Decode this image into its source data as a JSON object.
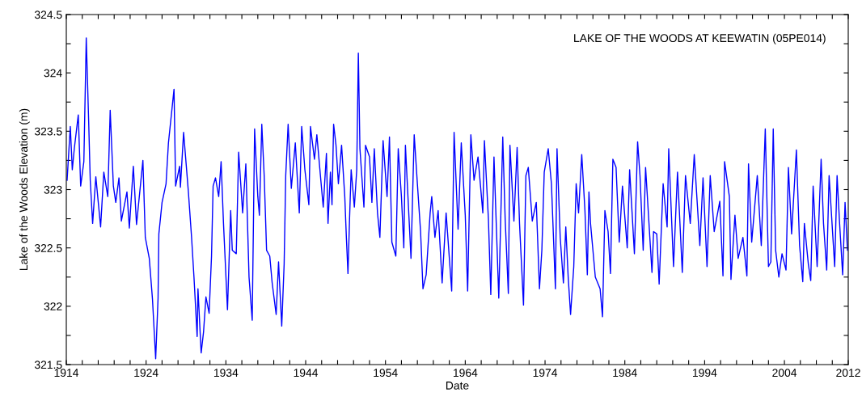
{
  "chart_data": {
    "type": "line",
    "title": "LAKE OF THE WOODS AT KEEWATIN (05PE014)",
    "xlabel": "Date",
    "ylabel": "Lake of the Woods Elevation (m)",
    "xlim": [
      1914,
      2012
    ],
    "xticks": [
      1914,
      {
        "value": 1916,
        "label": null
      },
      {
        "value": 1918,
        "label": null
      },
      {
        "value": 1920,
        "label": null
      },
      {
        "value": 1922,
        "label": null
      },
      1924,
      {
        "value": 1926,
        "label": null
      },
      {
        "value": 1928,
        "label": null
      },
      {
        "value": 1930,
        "label": null
      },
      {
        "value": 1932,
        "label": null
      },
      1934,
      {
        "value": 1936,
        "label": null
      },
      {
        "value": 1938,
        "label": null
      },
      {
        "value": 1940,
        "label": null
      },
      {
        "value": 1942,
        "label": null
      },
      1944,
      {
        "value": 1946,
        "label": null
      },
      {
        "value": 1948,
        "label": null
      },
      {
        "value": 1950,
        "label": null
      },
      {
        "value": 1952,
        "label": null
      },
      1954,
      {
        "value": 1956,
        "label": null
      },
      {
        "value": 1958,
        "label": null
      },
      {
        "value": 1960,
        "label": null
      },
      {
        "value": 1962,
        "label": null
      },
      1964,
      {
        "value": 1966,
        "label": null
      },
      {
        "value": 1968,
        "label": null
      },
      {
        "value": 1970,
        "label": null
      },
      {
        "value": 1972,
        "label": null
      },
      1974,
      {
        "value": 1976,
        "label": null
      },
      {
        "value": 1978,
        "label": null
      },
      {
        "value": 1980,
        "label": null
      },
      {
        "value": 1982,
        "label": null
      },
      1984,
      {
        "value": 1986,
        "label": null
      },
      {
        "value": 1988,
        "label": null
      },
      {
        "value": 1990,
        "label": null
      },
      {
        "value": 1992,
        "label": null
      },
      1994,
      {
        "value": 1996,
        "label": null
      },
      {
        "value": 1998,
        "label": null
      },
      {
        "value": 2000,
        "label": null
      },
      {
        "value": 2002,
        "label": null
      },
      2004,
      {
        "value": 2006,
        "label": null
      },
      {
        "value": 2008,
        "label": null
      },
      {
        "value": 2010,
        "label": null
      },
      2012
    ],
    "ylim": [
      321.5,
      324.5
    ],
    "yticks": [
      321.5,
      {
        "value": 321.75,
        "label": null
      },
      322,
      {
        "value": 322.25,
        "label": null
      },
      322.5,
      {
        "value": 322.75,
        "label": null
      },
      323,
      {
        "value": 323.25,
        "label": null
      },
      323.5,
      {
        "value": 323.75,
        "label": null
      },
      324,
      {
        "value": 324.25,
        "label": null
      },
      324.5
    ],
    "grid": false,
    "legend": false,
    "marker": "none",
    "line_style": "solid",
    "series": [
      {
        "color": "#0000ff",
        "x": [
          1914.1,
          1914.5,
          1914.75,
          1915,
          1915.5,
          1915.8,
          1916.2,
          1916.5,
          1916.8,
          1917,
          1917.3,
          1917.7,
          1918.3,
          1918.7,
          1919.2,
          1919.5,
          1919.9,
          1920.2,
          1920.6,
          1920.9,
          1921.6,
          1921.9,
          1922.4,
          1922.8,
          1923.6,
          1923.9,
          1924.4,
          1924.8,
          1925.2,
          1925.5,
          1925.6,
          1926,
          1926.5,
          1926.8,
          1927.5,
          1927.7,
          1928.2,
          1928.3,
          1928.7,
          1929.3,
          1929.7,
          1930,
          1930.4,
          1930.5,
          1930.9,
          1931.2,
          1931.5,
          1931.9,
          1932.2,
          1932.4,
          1932.7,
          1933.1,
          1933.4,
          1933.7,
          1934.2,
          1934.6,
          1934.8,
          1935.3,
          1935.6,
          1936.1,
          1936.5,
          1936.9,
          1937.3,
          1937.6,
          1938,
          1938.2,
          1938.5,
          1938.8,
          1939.1,
          1939.5,
          1939.8,
          1940.3,
          1940.6,
          1941,
          1941.3,
          1941.5,
          1941.8,
          1942.2,
          1942.7,
          1943.2,
          1943.5,
          1943.9,
          1944.4,
          1944.6,
          1945.1,
          1945.4,
          1945.9,
          1946.2,
          1946.6,
          1946.8,
          1947.1,
          1947.3,
          1947.5,
          1947.8,
          1948.1,
          1948.5,
          1948.9,
          1949.1,
          1949.3,
          1949.5,
          1949.7,
          1950.1,
          1950.4,
          1950.6,
          1950.8,
          1951.3,
          1951.5,
          1952,
          1952.3,
          1952.6,
          1953,
          1953.3,
          1953.7,
          1954.2,
          1954.5,
          1954.8,
          1955.3,
          1955.6,
          1956,
          1956.3,
          1956.5,
          1957.2,
          1957.6,
          1958,
          1958.4,
          1958.7,
          1959.1,
          1959.6,
          1959.8,
          1960.2,
          1960.6,
          1961.1,
          1961.6,
          1962.3,
          1962.6,
          1963.1,
          1963.5,
          1964,
          1964.3,
          1964.7,
          1965.1,
          1965.6,
          1966.2,
          1966.4,
          1966.9,
          1967.2,
          1967.6,
          1968.2,
          1968.7,
          1969,
          1969.4,
          1969.6,
          1970.1,
          1970.5,
          1970.8,
          1971.3,
          1971.6,
          1971.9,
          1972.4,
          1972.9,
          1973.3,
          1973.6,
          1973.9,
          1974.4,
          1974.8,
          1975.3,
          1975.5,
          1975.9,
          1976.3,
          1976.6,
          1976.9,
          1977.2,
          1977.6,
          1977.9,
          1978.2,
          1978.6,
          1979,
          1979.3,
          1979.5,
          1979.7,
          1980,
          1980.3,
          1980.9,
          1981.2,
          1981.5,
          1981.9,
          1982.2,
          1982.5,
          1982.9,
          1983.3,
          1983.7,
          1984.3,
          1984.6,
          1985.2,
          1985.6,
          1985.9,
          1986.3,
          1986.6,
          1987.4,
          1987.6,
          1988,
          1988.3,
          1988.8,
          1989.3,
          1989.5,
          1990.1,
          1990.6,
          1991.2,
          1991.6,
          1992.2,
          1992.7,
          1993.4,
          1993.8,
          1994.3,
          1994.7,
          1995.2,
          1995.9,
          1996.3,
          1996.5,
          1997.1,
          1997.3,
          1997.8,
          1998.2,
          1998.8,
          1999.3,
          1999.5,
          1999.9,
          2000.6,
          2001.1,
          2001.6,
          2002,
          2002.3,
          2002.6,
          2002.9,
          2003.3,
          2003.7,
          2004.2,
          2004.5,
          2004.9,
          2005.5,
          2005.9,
          2006.3,
          2006.5,
          2007,
          2007.3,
          2007.6,
          2008.1,
          2008.6,
          2008.9,
          2009.3,
          2009.6,
          2010.3,
          2010.6,
          2010.9,
          2011.3,
          2011.6,
          2011.9
        ],
        "values": [
          323.08,
          323.54,
          323.17,
          323.35,
          323.64,
          323.03,
          323.24,
          324.3,
          323.59,
          323.08,
          322.71,
          323.11,
          322.68,
          323.15,
          322.94,
          323.68,
          323.03,
          322.89,
          323.1,
          322.73,
          322.98,
          322.67,
          323.2,
          322.7,
          323.25,
          322.59,
          322.41,
          322.06,
          321.55,
          322.07,
          322.62,
          322.89,
          323.05,
          323.4,
          323.86,
          323.03,
          323.2,
          323.02,
          323.49,
          322.98,
          322.59,
          322.25,
          321.74,
          322.15,
          321.6,
          321.78,
          322.08,
          321.94,
          322.43,
          323.03,
          323.1,
          322.94,
          323.24,
          322.71,
          321.97,
          322.82,
          322.48,
          322.45,
          323.32,
          322.8,
          323.22,
          322.25,
          321.88,
          323.52,
          322.94,
          322.78,
          323.56,
          323.12,
          322.48,
          322.43,
          322.2,
          321.93,
          322.38,
          321.83,
          322.36,
          323.12,
          323.56,
          323.01,
          323.4,
          322.8,
          323.54,
          323.17,
          322.87,
          323.54,
          323.26,
          323.47,
          323.08,
          322.85,
          323.31,
          322.71,
          323.15,
          322.87,
          323.56,
          323.38,
          323.05,
          323.38,
          322.94,
          322.59,
          322.28,
          322.75,
          323.17,
          322.85,
          323.17,
          324.17,
          323.35,
          322.85,
          323.38,
          323.28,
          322.89,
          323.35,
          322.8,
          322.59,
          323.42,
          322.94,
          323.45,
          322.55,
          322.43,
          323.35,
          322.94,
          322.5,
          323.38,
          322.41,
          323.47,
          323.05,
          322.64,
          322.15,
          322.27,
          322.8,
          322.94,
          322.59,
          322.82,
          322.2,
          322.8,
          322.13,
          323.49,
          322.66,
          323.4,
          322.78,
          322.13,
          323.47,
          323.08,
          323.28,
          322.8,
          323.42,
          322.75,
          322.1,
          323.28,
          322.07,
          323.45,
          322.75,
          322.11,
          323.38,
          322.73,
          323.36,
          322.71,
          322.01,
          323.12,
          323.19,
          322.73,
          322.89,
          322.15,
          322.48,
          323.15,
          323.35,
          323.05,
          322.15,
          323.35,
          322.59,
          322.2,
          322.68,
          322.25,
          321.93,
          322.34,
          323.05,
          322.8,
          323.3,
          322.82,
          322.27,
          322.98,
          322.71,
          322.48,
          322.25,
          322.15,
          321.91,
          322.82,
          322.64,
          322.28,
          323.26,
          323.19,
          322.55,
          323.03,
          322.5,
          323.17,
          322.45,
          323.41,
          323.12,
          322.48,
          323.19,
          322.29,
          322.64,
          322.62,
          322.19,
          323.05,
          322.68,
          323.35,
          322.34,
          323.15,
          322.29,
          323.12,
          322.71,
          323.3,
          322.52,
          323.1,
          322.34,
          323.12,
          322.64,
          322.9,
          322.26,
          323.24,
          322.94,
          322.23,
          322.78,
          322.41,
          322.59,
          322.26,
          323.22,
          322.55,
          323.12,
          322.52,
          323.52,
          322.34,
          322.38,
          323.52,
          322.48,
          322.25,
          322.45,
          322.31,
          323.19,
          322.62,
          323.34,
          322.52,
          322.21,
          322.71,
          322.36,
          322.22,
          323.03,
          322.34,
          323.26,
          322.71,
          322.31,
          323.12,
          322.34,
          323.12,
          322.73,
          322.27,
          322.89,
          322.48
        ]
      }
    ]
  }
}
